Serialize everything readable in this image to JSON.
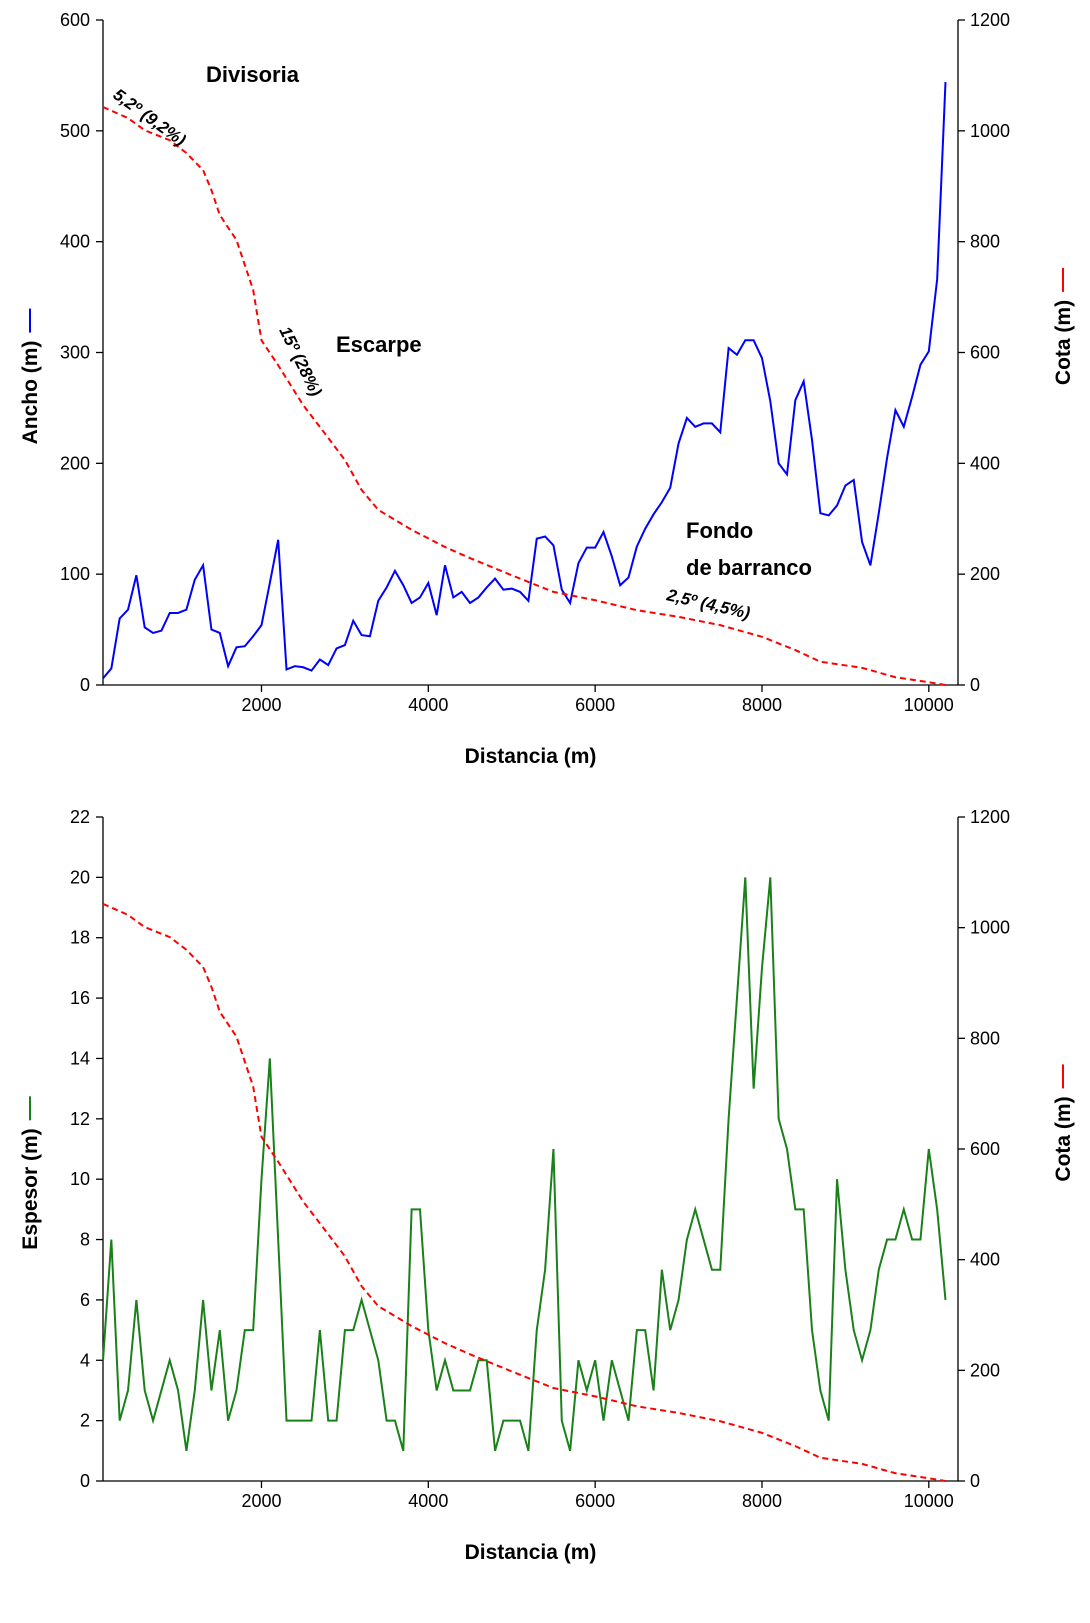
{
  "chart_data": [
    {
      "type": "line",
      "xlabel": "Distancia (m)",
      "ylabel": "Ancho (m)",
      "y2label": "Cota (m)",
      "xlim": [
        100,
        10350
      ],
      "xticks": [
        2000,
        4000,
        6000,
        8000,
        10000
      ],
      "ylim": [
        0,
        600
      ],
      "yticks": [
        0,
        100,
        200,
        300,
        400,
        500,
        600
      ],
      "y2lim": [
        0,
        1200
      ],
      "y2ticks": [
        0,
        200,
        400,
        600,
        800,
        1000,
        1200
      ],
      "annotations": [
        "Divisoria",
        "5,2º (9,2%)",
        "Escarpe",
        "15º (28%)",
        "Fondo",
        "de barranco",
        "2,5º (4,5%)"
      ],
      "series": [
        {
          "color": "#0000ff",
          "axis": "y",
          "dashed": false,
          "x": [
            100,
            200,
            300,
            400,
            500,
            600,
            700,
            800,
            900,
            1000,
            1100,
            1200,
            1300,
            1400,
            1500,
            1600,
            1700,
            1800,
            1900,
            2000,
            2100,
            2200,
            2300,
            2400,
            2500,
            2600,
            2700,
            2800,
            2900,
            3000,
            3100,
            3200,
            3300,
            3400,
            3500,
            3600,
            3700,
            3800,
            3900,
            4000,
            4100,
            4200,
            4300,
            4400,
            4500,
            4600,
            4700,
            4800,
            4900,
            5000,
            5100,
            5200,
            5300,
            5400,
            5500,
            5600,
            5700,
            5800,
            5900,
            6000,
            6100,
            6200,
            6300,
            6400,
            6500,
            6600,
            6700,
            6800,
            6900,
            7000,
            7100,
            7200,
            7300,
            7400,
            7500,
            7600,
            7700,
            7800,
            7900,
            8000,
            8100,
            8200,
            8300,
            8400,
            8500,
            8600,
            8700,
            8800,
            8900,
            9000,
            9100,
            9200,
            9300,
            9400,
            9500,
            9600,
            9700,
            9800,
            9900,
            10000,
            10100,
            10200
          ],
          "values": [
            6,
            15,
            60,
            68,
            99,
            52,
            47,
            49,
            65,
            65,
            68,
            95,
            108,
            50,
            47,
            17,
            34,
            35,
            44,
            54,
            92,
            131,
            14,
            17,
            16,
            13,
            23,
            18,
            33,
            36,
            58,
            45,
            44,
            76,
            88,
            103,
            90,
            74,
            79,
            92,
            63,
            108,
            79,
            84,
            74,
            79,
            88,
            96,
            86,
            87,
            84,
            76,
            132,
            134,
            126,
            86,
            74,
            110,
            124,
            124,
            138,
            116,
            90,
            97,
            125,
            141,
            154,
            165,
            178,
            218,
            241,
            233,
            236,
            236,
            228,
            304,
            298,
            311,
            311,
            295,
            256,
            200,
            190,
            257,
            274,
            221,
            155,
            153,
            162,
            180,
            185,
            129,
            108,
            155,
            205,
            248,
            233,
            260,
            289,
            301,
            366,
            544
          ]
        },
        {
          "color": "#ff0000",
          "axis": "y2",
          "dashed": true,
          "x": [
            100,
            400,
            600,
            900,
            1100,
            1300,
            1400,
            1500,
            1700,
            1900,
            2000,
            2200,
            2500,
            2800,
            3000,
            3200,
            3400,
            3600,
            3800,
            4200,
            4500,
            5000,
            5500,
            6000,
            6500,
            7000,
            7500,
            8000,
            8400,
            8700,
            9200,
            9600,
            10000,
            10200
          ],
          "values": [
            1043,
            1023,
            1001,
            983,
            960,
            929,
            893,
            848,
            803,
            713,
            622,
            577,
            505,
            446,
            406,
            352,
            316,
            298,
            280,
            249,
            229,
            198,
            168,
            153,
            135,
            123,
            108,
            87,
            63,
            42,
            31,
            14,
            5,
            0
          ]
        }
      ]
    },
    {
      "type": "line",
      "xlabel": "Distancia (m)",
      "ylabel": "Espesor (m)",
      "y2label": "Cota (m)",
      "xlim": [
        100,
        10350
      ],
      "xticks": [
        2000,
        4000,
        6000,
        8000,
        10000
      ],
      "ylim": [
        0,
        22
      ],
      "yticks": [
        0,
        2,
        4,
        6,
        8,
        10,
        12,
        14,
        16,
        18,
        20,
        22
      ],
      "y2lim": [
        0,
        1200
      ],
      "y2ticks": [
        0,
        200,
        400,
        600,
        800,
        1000,
        1200
      ],
      "series": [
        {
          "color": "#1a801a",
          "axis": "y",
          "dashed": false,
          "x": [
            100,
            200,
            300,
            400,
            500,
            600,
            700,
            800,
            900,
            1000,
            1100,
            1200,
            1300,
            1400,
            1500,
            1600,
            1700,
            1800,
            1900,
            2000,
            2100,
            2200,
            2300,
            2400,
            2500,
            2600,
            2700,
            2800,
            2900,
            3000,
            3100,
            3200,
            3300,
            3400,
            3500,
            3600,
            3700,
            3800,
            3900,
            4000,
            4100,
            4200,
            4300,
            4400,
            4500,
            4600,
            4700,
            4800,
            4900,
            5000,
            5100,
            5200,
            5300,
            5400,
            5500,
            5600,
            5700,
            5800,
            5900,
            6000,
            6100,
            6200,
            6300,
            6400,
            6500,
            6600,
            6700,
            6800,
            6900,
            7000,
            7100,
            7200,
            7300,
            7400,
            7500,
            7600,
            7700,
            7800,
            7900,
            8000,
            8100,
            8200,
            8300,
            8400,
            8500,
            8600,
            8700,
            8800,
            8900,
            9000,
            9100,
            9200,
            9300,
            9400,
            9500,
            9600,
            9700,
            9800,
            9900,
            10000,
            10100,
            10200
          ],
          "values": [
            4,
            8,
            2,
            3,
            6,
            3,
            2,
            3,
            4,
            3,
            1,
            3,
            6,
            3,
            5,
            2,
            3,
            5,
            5,
            10,
            14,
            8,
            2,
            2,
            2,
            2,
            5,
            2,
            2,
            5,
            5,
            6,
            5,
            4,
            2,
            2,
            1,
            9,
            9,
            5,
            3,
            4,
            3,
            3,
            3,
            4,
            4,
            1,
            2,
            2,
            2,
            1,
            5,
            7,
            11,
            2,
            1,
            4,
            3,
            4,
            2,
            4,
            3,
            2,
            5,
            5,
            3,
            7,
            5,
            6,
            8,
            9,
            8,
            7,
            7,
            12,
            16,
            20,
            13,
            17,
            20,
            12,
            11,
            9,
            9,
            5,
            3,
            2,
            10,
            7,
            5,
            4,
            5,
            7,
            8,
            8,
            9,
            8,
            8,
            11,
            9,
            6
          ]
        },
        {
          "color": "#ff0000",
          "axis": "y2",
          "dashed": true,
          "x": [
            100,
            400,
            600,
            900,
            1100,
            1300,
            1400,
            1500,
            1700,
            1900,
            2000,
            2200,
            2500,
            2800,
            3000,
            3200,
            3400,
            3600,
            3800,
            4200,
            4500,
            5000,
            5500,
            6000,
            6500,
            7000,
            7500,
            8000,
            8400,
            8700,
            9200,
            9600,
            10000,
            10200
          ],
          "values": [
            1043,
            1023,
            1001,
            983,
            960,
            929,
            893,
            848,
            803,
            713,
            622,
            577,
            505,
            446,
            406,
            352,
            316,
            298,
            280,
            249,
            229,
            198,
            168,
            153,
            135,
            123,
            108,
            87,
            63,
            42,
            31,
            14,
            5,
            0
          ]
        }
      ]
    }
  ]
}
